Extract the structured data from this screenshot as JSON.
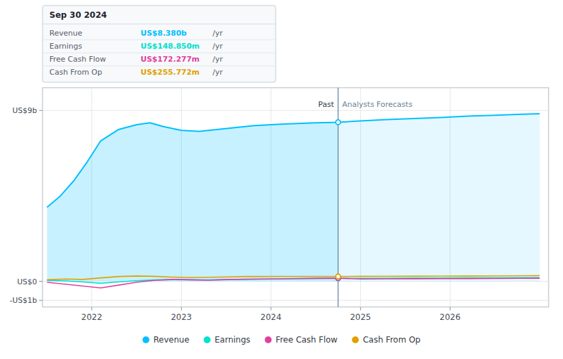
{
  "chart_data": {
    "type": "line",
    "xlim": [
      2021.45,
      2027.1
    ],
    "xticks": [
      2022,
      2023,
      2024,
      2025,
      2026
    ],
    "ylim": [
      -1350000000.0,
      10200000000.0
    ],
    "yticks": [
      {
        "value": 9000000000.0,
        "label": "US$9b"
      },
      {
        "value": 0,
        "label": "US$0"
      },
      {
        "value": -1000000000.0,
        "label": "-US$1b"
      }
    ],
    "grid": true,
    "legend": "bottom",
    "vlines": [
      2024.75
    ],
    "annotations": [
      {
        "text": "Past",
        "x": 2024.75,
        "y": 9000000000.0
      },
      {
        "text": "Analysts Forecasts",
        "x": 2024.75,
        "y": 9000000000.0
      }
    ],
    "tooltip": {
      "title": "Sep 30 2024",
      "rows": [
        {
          "label": "Revenue",
          "value": "US$8.380b",
          "suffix": "/yr",
          "color": "#00bfff"
        },
        {
          "label": "Earnings",
          "value": "US$148.850m",
          "suffix": "/yr",
          "color": "#00e0cc"
        },
        {
          "label": "Free Cash Flow",
          "value": "US$172.277m",
          "suffix": "/yr",
          "color": "#e040a0"
        },
        {
          "label": "Cash From Op",
          "value": "US$255.772m",
          "suffix": "/yr",
          "color": "#e0a000"
        }
      ]
    },
    "series": [
      {
        "name": "Revenue",
        "type": "area",
        "color": "#00bfff",
        "x": [
          2021.5,
          2021.65,
          2021.8,
          2021.95,
          2022.1,
          2022.3,
          2022.5,
          2022.65,
          2022.8,
          2023.0,
          2023.2,
          2023.4,
          2023.6,
          2023.8,
          2024.0,
          2024.2,
          2024.5,
          2024.75,
          2025.0,
          2025.3,
          2025.6,
          2025.9,
          2026.2,
          2026.5,
          2026.8,
          2027.0
        ],
        "values": [
          3900000000.0,
          4500000000.0,
          5300000000.0,
          6300000000.0,
          7400000000.0,
          8000000000.0,
          8250000000.0,
          8350000000.0,
          8150000000.0,
          7950000000.0,
          7900000000.0,
          8000000000.0,
          8100000000.0,
          8200000000.0,
          8250000000.0,
          8300000000.0,
          8350000000.0,
          8380000000.0,
          8450000000.0,
          8520000000.0,
          8580000000.0,
          8630000000.0,
          8700000000.0,
          8750000000.0,
          8800000000.0,
          8830000000.0
        ]
      },
      {
        "name": "Earnings",
        "type": "line",
        "color": "#00e0cc",
        "x": [
          2021.5,
          2021.7,
          2021.9,
          2022.1,
          2022.3,
          2022.5,
          2022.7,
          2022.9,
          2023.1,
          2023.3,
          2023.5,
          2023.7,
          2023.9,
          2024.1,
          2024.3,
          2024.5,
          2024.75,
          2025.0,
          2025.3,
          2025.6,
          2025.9,
          2026.2,
          2026.5,
          2026.8,
          2027.0
        ],
        "values": [
          50000000.0,
          20000000.0,
          -30000000.0,
          -100000000.0,
          -30000000.0,
          30000000.0,
          70000000.0,
          90000000.0,
          80000000.0,
          70000000.0,
          90000000.0,
          100000000.0,
          110000000.0,
          120000000.0,
          130000000.0,
          140000000.0,
          149000000.0,
          155000000.0,
          165000000.0,
          170000000.0,
          175000000.0,
          180000000.0,
          185000000.0,
          190000000.0,
          195000000.0
        ]
      },
      {
        "name": "Free Cash Flow",
        "type": "line",
        "color": "#e040a0",
        "x": [
          2021.5,
          2021.7,
          2021.9,
          2022.1,
          2022.3,
          2022.5,
          2022.7,
          2022.9,
          2023.1,
          2023.3,
          2023.5,
          2023.7,
          2023.9,
          2024.1,
          2024.3,
          2024.5,
          2024.75,
          2025.0,
          2025.3,
          2025.6,
          2025.9,
          2026.2,
          2026.5,
          2026.8,
          2027.0
        ],
        "values": [
          -50000000.0,
          -150000000.0,
          -250000000.0,
          -350000000.0,
          -200000000.0,
          -50000000.0,
          50000000.0,
          100000000.0,
          80000000.0,
          60000000.0,
          90000000.0,
          110000000.0,
          120000000.0,
          130000000.0,
          150000000.0,
          160000000.0,
          172000000.0,
          120000000.0,
          130000000.0,
          135000000.0,
          140000000.0,
          145000000.0,
          150000000.0,
          155000000.0,
          160000000.0
        ]
      },
      {
        "name": "Cash From Op",
        "type": "line",
        "color": "#e0a000",
        "x": [
          2021.5,
          2021.7,
          2021.9,
          2022.1,
          2022.3,
          2022.5,
          2022.7,
          2022.9,
          2023.1,
          2023.3,
          2023.5,
          2023.7,
          2023.9,
          2024.1,
          2024.3,
          2024.5,
          2024.75,
          2025.0,
          2025.3,
          2025.6,
          2025.9,
          2026.2,
          2026.5,
          2026.8,
          2027.0
        ],
        "values": [
          80000000.0,
          120000000.0,
          100000000.0,
          180000000.0,
          250000000.0,
          280000000.0,
          260000000.0,
          220000000.0,
          200000000.0,
          210000000.0,
          230000000.0,
          250000000.0,
          250000000.0,
          255000000.0,
          255000000.0,
          256000000.0,
          255800000.0,
          260000000.0,
          265000000.0,
          270000000.0,
          275000000.0,
          280000000.0,
          285000000.0,
          290000000.0,
          295000000.0
        ]
      }
    ]
  }
}
